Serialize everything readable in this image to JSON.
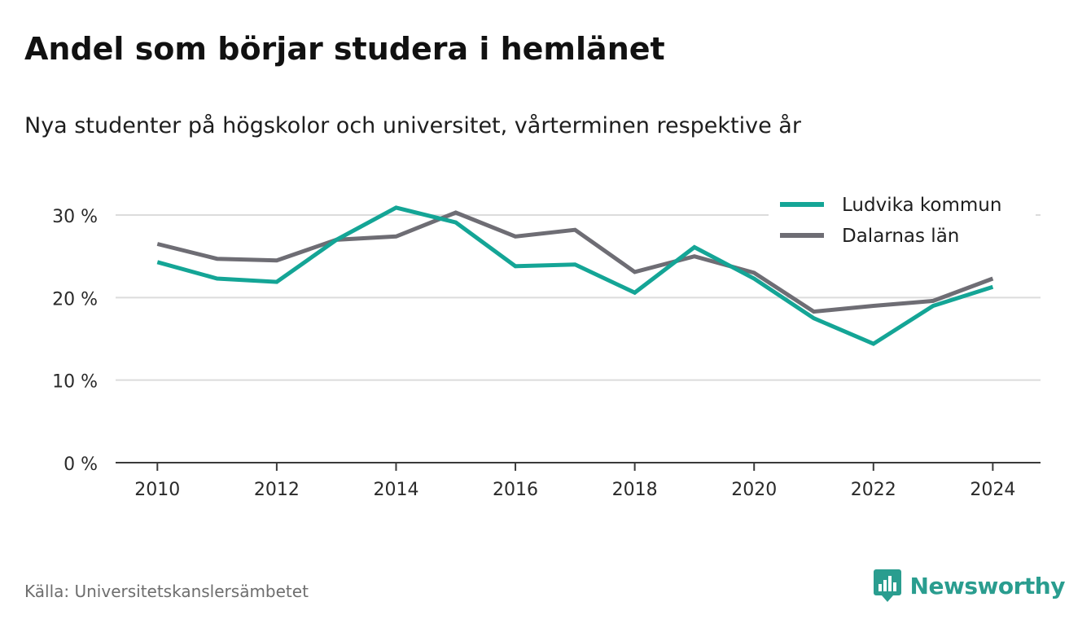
{
  "header": {
    "title": "Andel som börjar studera i hemlänet",
    "subtitle": "Nya studenter på högskolor och universitet, vårterminen respektive år"
  },
  "footer": {
    "source": "Källa: Universitetskanslersämbetet",
    "brand_name": "Newsworthy",
    "brand_icon": "bar-chart-speech-bubble-icon",
    "brand_color": "#2a9d8f"
  },
  "chart_data": {
    "type": "line",
    "title": "",
    "xlabel": "",
    "ylabel": "",
    "x": [
      2010,
      2011,
      2012,
      2013,
      2014,
      2015,
      2016,
      2017,
      2018,
      2019,
      2020,
      2021,
      2022,
      2023,
      2024
    ],
    "xlim": [
      2009.3,
      2024.8
    ],
    "ylim": [
      0,
      30
    ],
    "x_ticks": [
      2010,
      2012,
      2014,
      2016,
      2018,
      2020,
      2022,
      2024
    ],
    "y_ticks": [
      0,
      10,
      20,
      30
    ],
    "y_tick_labels": [
      "0 %",
      "10 %",
      "20 %",
      "30 %"
    ],
    "grid": true,
    "legend_position": "top-right",
    "series": [
      {
        "name": "Ludvika kommun",
        "color": "#14a596",
        "values": [
          24.3,
          22.3,
          21.9,
          27.0,
          30.9,
          29.1,
          23.8,
          24.0,
          20.6,
          26.1,
          22.3,
          17.5,
          14.4,
          19.0,
          21.3
        ]
      },
      {
        "name": "Dalarnas län",
        "color": "#6e6d74",
        "values": [
          26.5,
          24.7,
          24.5,
          27.0,
          27.4,
          30.3,
          27.4,
          28.2,
          23.1,
          25.0,
          23.0,
          18.3,
          19.0,
          19.6,
          22.3
        ]
      }
    ]
  }
}
